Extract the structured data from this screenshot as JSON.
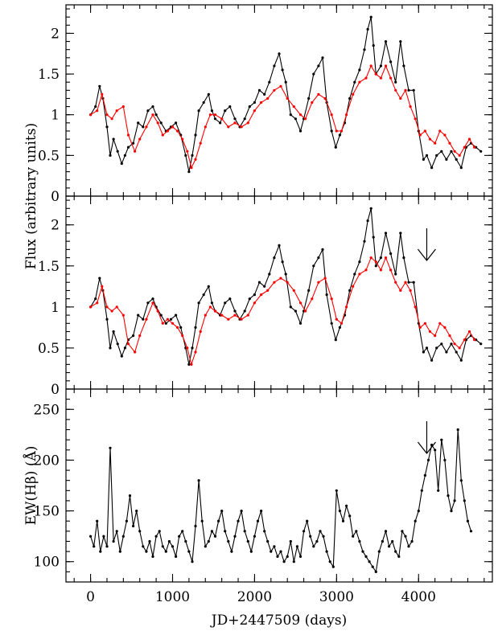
{
  "chart_data": [
    {
      "type": "line",
      "panel": "top",
      "xlim": [
        -300,
        4900
      ],
      "ylim": [
        0,
        2.35
      ],
      "yticks": [
        0,
        0.5,
        1,
        1.5,
        2
      ],
      "yticklabels": [
        "0",
        "0.5",
        "1",
        "1.5",
        "2"
      ],
      "series": [
        {
          "color": "#000000",
          "x": [
            0,
            60,
            110,
            150,
            200,
            240,
            280,
            330,
            380,
            420,
            460,
            520,
            580,
            640,
            700,
            760,
            800,
            860,
            920,
            980,
            1040,
            1100,
            1160,
            1200,
            1240,
            1280,
            1320,
            1380,
            1440,
            1480,
            1520,
            1580,
            1640,
            1700,
            1760,
            1820,
            1880,
            1940,
            2000,
            2060,
            2120,
            2180,
            2240,
            2300,
            2340,
            2380,
            2440,
            2500,
            2560,
            2600,
            2660,
            2720,
            2780,
            2830,
            2880,
            2940,
            2990,
            3040,
            3100,
            3160,
            3220,
            3280,
            3340,
            3380,
            3420,
            3450,
            3480,
            3540,
            3600,
            3660,
            3720,
            3780,
            3820,
            3880,
            3940,
            4000,
            4060,
            4100,
            4160,
            4220,
            4280,
            4340,
            4400,
            4460,
            4520,
            4580,
            4640,
            4700,
            4760
          ],
          "y": [
            1.0,
            1.1,
            1.35,
            1.2,
            0.85,
            0.5,
            0.7,
            0.55,
            0.4,
            0.5,
            0.6,
            0.65,
            0.9,
            0.85,
            1.05,
            1.1,
            1.0,
            0.9,
            0.8,
            0.85,
            0.9,
            0.75,
            0.5,
            0.3,
            0.5,
            0.75,
            1.05,
            1.15,
            1.25,
            1.05,
            0.95,
            0.9,
            1.05,
            1.1,
            0.95,
            0.85,
            0.95,
            1.1,
            1.15,
            1.3,
            1.25,
            1.4,
            1.6,
            1.75,
            1.55,
            1.4,
            1.0,
            0.95,
            0.8,
            0.95,
            1.2,
            1.5,
            1.6,
            1.7,
            1.15,
            0.8,
            0.6,
            0.75,
            0.9,
            1.2,
            1.4,
            1.55,
            1.8,
            2.05,
            2.2,
            1.85,
            1.5,
            1.6,
            1.9,
            1.65,
            1.4,
            1.9,
            1.6,
            1.3,
            1.3,
            0.8,
            0.45,
            0.5,
            0.35,
            0.5,
            0.55,
            0.45,
            0.55,
            0.45,
            0.35,
            0.6,
            0.65,
            0.6,
            0.55
          ]
        },
        {
          "color": "#ff0000",
          "x": [
            0,
            80,
            140,
            200,
            260,
            320,
            400,
            460,
            540,
            600,
            680,
            760,
            820,
            880,
            940,
            1000,
            1060,
            1120,
            1180,
            1230,
            1280,
            1340,
            1400,
            1460,
            1520,
            1600,
            1680,
            1760,
            1840,
            1920,
            2000,
            2080,
            2160,
            2240,
            2320,
            2400,
            2480,
            2560,
            2620,
            2700,
            2780,
            2860,
            2940,
            3000,
            3060,
            3120,
            3200,
            3280,
            3360,
            3420,
            3480,
            3540,
            3600,
            3660,
            3720,
            3780,
            3840,
            3900,
            3960,
            4020,
            4080,
            4140,
            4200,
            4260,
            4320,
            4380,
            4440,
            4500,
            4560,
            4620,
            4680
          ],
          "y": [
            1.0,
            1.05,
            1.25,
            1.0,
            0.95,
            1.05,
            1.1,
            0.75,
            0.55,
            0.7,
            0.85,
            1.0,
            0.9,
            0.75,
            0.8,
            0.85,
            0.8,
            0.7,
            0.55,
            0.35,
            0.45,
            0.65,
            0.85,
            1.0,
            1.0,
            0.95,
            0.85,
            0.9,
            0.85,
            0.9,
            1.05,
            1.15,
            1.2,
            1.3,
            1.35,
            1.2,
            1.1,
            1.0,
            0.95,
            1.15,
            1.25,
            1.2,
            1.0,
            0.8,
            0.8,
            1.0,
            1.25,
            1.4,
            1.45,
            1.6,
            1.5,
            1.45,
            1.6,
            1.45,
            1.3,
            1.2,
            1.3,
            1.1,
            0.95,
            0.75,
            0.8,
            0.7,
            0.65,
            0.8,
            0.75,
            0.65,
            0.55,
            0.5,
            0.6,
            0.7,
            0.6
          ]
        }
      ]
    },
    {
      "type": "line",
      "panel": "middle",
      "xlim": [
        -300,
        4900
      ],
      "ylim": [
        0,
        2.35
      ],
      "yticks": [
        0,
        0.5,
        1,
        1.5,
        2
      ],
      "yticklabels": [
        "0",
        "0.5",
        "1",
        "1.5",
        "2"
      ],
      "ylabel": "Flux (arbitrary units)",
      "annotation_arrow_x": 4100,
      "series": [
        {
          "color": "#000000",
          "x": [
            0,
            60,
            110,
            150,
            200,
            240,
            280,
            330,
            380,
            420,
            460,
            520,
            580,
            640,
            700,
            760,
            800,
            860,
            920,
            980,
            1040,
            1100,
            1160,
            1200,
            1240,
            1280,
            1320,
            1380,
            1440,
            1480,
            1520,
            1580,
            1640,
            1700,
            1760,
            1820,
            1880,
            1940,
            2000,
            2060,
            2120,
            2180,
            2240,
            2300,
            2340,
            2380,
            2440,
            2500,
            2560,
            2600,
            2660,
            2720,
            2780,
            2830,
            2880,
            2940,
            2990,
            3040,
            3100,
            3160,
            3220,
            3280,
            3340,
            3380,
            3420,
            3450,
            3480,
            3540,
            3600,
            3660,
            3720,
            3780,
            3820,
            3880,
            3940,
            4000,
            4060,
            4100,
            4160,
            4220,
            4280,
            4340,
            4400,
            4460,
            4520,
            4580,
            4640,
            4700,
            4760
          ],
          "y": [
            1.0,
            1.1,
            1.35,
            1.2,
            0.85,
            0.5,
            0.7,
            0.55,
            0.4,
            0.5,
            0.6,
            0.65,
            0.9,
            0.85,
            1.05,
            1.1,
            1.0,
            0.9,
            0.8,
            0.85,
            0.9,
            0.75,
            0.5,
            0.3,
            0.5,
            0.75,
            1.05,
            1.15,
            1.25,
            1.05,
            0.95,
            0.9,
            1.05,
            1.1,
            0.95,
            0.85,
            0.95,
            1.1,
            1.15,
            1.3,
            1.25,
            1.4,
            1.6,
            1.75,
            1.55,
            1.4,
            1.0,
            0.95,
            0.8,
            0.95,
            1.2,
            1.5,
            1.6,
            1.7,
            1.15,
            0.8,
            0.6,
            0.75,
            0.9,
            1.2,
            1.4,
            1.55,
            1.8,
            2.05,
            2.2,
            1.85,
            1.5,
            1.6,
            1.9,
            1.65,
            1.4,
            1.9,
            1.6,
            1.3,
            1.3,
            0.8,
            0.45,
            0.5,
            0.35,
            0.5,
            0.55,
            0.45,
            0.55,
            0.45,
            0.35,
            0.6,
            0.65,
            0.6,
            0.55
          ]
        },
        {
          "color": "#ff0000",
          "x": [
            0,
            80,
            140,
            200,
            260,
            320,
            400,
            460,
            540,
            600,
            680,
            760,
            820,
            880,
            940,
            1000,
            1060,
            1120,
            1180,
            1230,
            1280,
            1340,
            1400,
            1460,
            1520,
            1600,
            1680,
            1760,
            1840,
            1920,
            2000,
            2080,
            2160,
            2240,
            2320,
            2400,
            2480,
            2560,
            2620,
            2700,
            2780,
            2860,
            2940,
            3000,
            3060,
            3120,
            3200,
            3280,
            3360,
            3420,
            3480,
            3540,
            3600,
            3660,
            3720,
            3780,
            3840,
            3900,
            3960,
            4020,
            4080,
            4140,
            4200,
            4260,
            4320,
            4380,
            4440,
            4500,
            4560,
            4620,
            4680
          ],
          "y": [
            1.0,
            1.05,
            1.25,
            1.0,
            0.95,
            1.0,
            0.9,
            0.55,
            0.45,
            0.65,
            0.85,
            1.05,
            0.95,
            0.8,
            0.85,
            0.8,
            0.75,
            0.65,
            0.5,
            0.3,
            0.45,
            0.7,
            0.9,
            1.0,
            0.95,
            0.9,
            0.85,
            0.9,
            0.85,
            0.9,
            1.05,
            1.15,
            1.2,
            1.3,
            1.35,
            1.3,
            1.2,
            1.05,
            0.95,
            1.1,
            1.3,
            1.35,
            1.1,
            0.85,
            0.8,
            1.0,
            1.25,
            1.4,
            1.45,
            1.6,
            1.55,
            1.45,
            1.6,
            1.45,
            1.3,
            1.2,
            1.3,
            1.2,
            1.0,
            0.75,
            0.8,
            0.7,
            0.65,
            0.8,
            0.75,
            0.65,
            0.55,
            0.5,
            0.6,
            0.7,
            0.6
          ]
        }
      ]
    },
    {
      "type": "line",
      "panel": "bottom",
      "xlim": [
        -300,
        4900
      ],
      "ylim": [
        80,
        270
      ],
      "yticks": [
        100,
        150,
        200,
        250
      ],
      "yticklabels": [
        "100",
        "150",
        "200",
        "250"
      ],
      "ylabel": "EW(Hβ) (Å)",
      "xticks": [
        0,
        1000,
        2000,
        3000,
        4000
      ],
      "xticklabels": [
        "0",
        "1000",
        "2000",
        "3000",
        "4000"
      ],
      "xlabel": "JD+2447509 (days)",
      "annotation_arrow_x": 4100,
      "series": [
        {
          "color": "#000000",
          "x": [
            0,
            40,
            80,
            120,
            160,
            200,
            240,
            280,
            320,
            360,
            400,
            440,
            480,
            520,
            560,
            600,
            640,
            680,
            720,
            760,
            800,
            840,
            880,
            920,
            960,
            1000,
            1040,
            1080,
            1120,
            1160,
            1200,
            1240,
            1280,
            1320,
            1360,
            1400,
            1440,
            1480,
            1520,
            1560,
            1600,
            1640,
            1680,
            1720,
            1760,
            1800,
            1840,
            1880,
            1920,
            1960,
            2000,
            2040,
            2080,
            2120,
            2160,
            2200,
            2240,
            2280,
            2320,
            2360,
            2400,
            2440,
            2480,
            2520,
            2560,
            2600,
            2640,
            2680,
            2720,
            2760,
            2800,
            2840,
            2880,
            2920,
            2960,
            3000,
            3040,
            3080,
            3120,
            3160,
            3200,
            3240,
            3280,
            3320,
            3360,
            3400,
            3440,
            3480,
            3520,
            3560,
            3600,
            3640,
            3680,
            3720,
            3760,
            3800,
            3840,
            3880,
            3920,
            3960,
            4000,
            4040,
            4080,
            4120,
            4160,
            4200,
            4240,
            4280,
            4320,
            4360,
            4400,
            4440,
            4480,
            4520,
            4560,
            4600,
            4640
          ],
          "y": [
            125,
            115,
            140,
            110,
            125,
            115,
            212,
            120,
            130,
            110,
            125,
            140,
            165,
            135,
            150,
            130,
            115,
            110,
            120,
            105,
            125,
            130,
            115,
            110,
            120,
            115,
            105,
            125,
            130,
            120,
            110,
            100,
            135,
            180,
            140,
            115,
            120,
            130,
            125,
            140,
            150,
            130,
            120,
            110,
            125,
            140,
            150,
            130,
            120,
            110,
            125,
            140,
            150,
            130,
            120,
            110,
            115,
            105,
            110,
            100,
            105,
            120,
            100,
            115,
            105,
            130,
            140,
            125,
            115,
            120,
            130,
            125,
            110,
            100,
            95,
            170,
            150,
            140,
            155,
            145,
            125,
            130,
            120,
            110,
            105,
            100,
            95,
            90,
            110,
            120,
            130,
            115,
            120,
            110,
            105,
            130,
            125,
            115,
            120,
            140,
            150,
            170,
            185,
            200,
            215,
            210,
            170,
            220,
            200,
            165,
            150,
            160,
            230,
            180,
            160,
            140,
            130
          ]
        }
      ]
    }
  ]
}
